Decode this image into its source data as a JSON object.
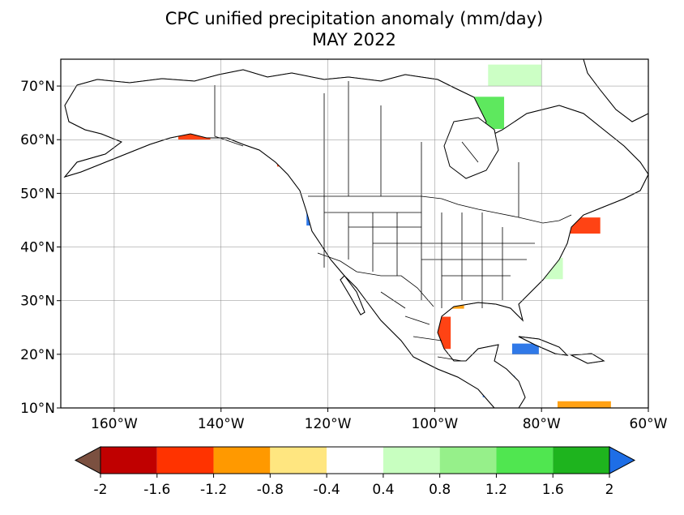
{
  "title": {
    "line1": "CPC unified precipitation anomaly (mm/day)",
    "line2": "MAY 2022"
  },
  "map": {
    "lon_range": [
      -170,
      -60
    ],
    "lat_range": [
      10,
      75
    ],
    "lat_labels": [
      "10°N",
      "20°N",
      "30°N",
      "40°N",
      "50°N",
      "60°N",
      "70°N"
    ],
    "lon_labels": [
      "160°W",
      "140°W",
      "120°W",
      "100°W",
      "80°W",
      "60°W"
    ]
  },
  "colorbar": {
    "tick_labels": [
      "-2",
      "-1.6",
      "-1.2",
      "-0.8",
      "-0.4",
      "0.4",
      "0.8",
      "1.2",
      "1.6",
      "2"
    ],
    "colors": [
      "#c00000",
      "#ff3300",
      "#ff9900",
      "#ffe680",
      "#ffffff",
      "#c8ffc0",
      "#96f08a",
      "#50e650",
      "#1eb41e"
    ],
    "under_color": "#7b5040",
    "over_color": "#1e6ee6"
  },
  "anomaly_colors": {
    "strong_dry": "#c00000",
    "dry": "#ff3300",
    "moderate_dry": "#ff9900",
    "slight_dry": "#ffe680",
    "slight_wet": "#c8ffc0",
    "moderate_wet": "#96f08a",
    "wet": "#50e650",
    "very_wet": "#1eb41e",
    "extreme_wet": "#1e6ee6"
  },
  "anomaly_regions": [
    {
      "lat": 62,
      "lon": -150,
      "w": 14,
      "h": 3,
      "cls": "slight_dry"
    },
    {
      "lat": 61,
      "lon": -145,
      "w": 6,
      "h": 2,
      "cls": "dry"
    },
    {
      "lat": 63,
      "lon": -133,
      "w": 6,
      "h": 3,
      "cls": "wet"
    },
    {
      "lat": 57,
      "lon": -127,
      "w": 5,
      "h": 4,
      "cls": "dry"
    },
    {
      "lat": 56,
      "lon": -120,
      "w": 3,
      "h": 4,
      "cls": "extreme_wet"
    },
    {
      "lat": 52,
      "lon": -112,
      "w": 7,
      "h": 4,
      "cls": "moderate_dry"
    },
    {
      "lat": 50,
      "lon": -103,
      "w": 7,
      "h": 5,
      "cls": "extreme_wet"
    },
    {
      "lat": 47,
      "lon": -98,
      "w": 4,
      "h": 4,
      "cls": "extreme_wet"
    },
    {
      "lat": 47,
      "lon": -123,
      "w": 2,
      "h": 6,
      "cls": "extreme_wet"
    },
    {
      "lat": 42,
      "lon": -97,
      "w": 4,
      "h": 4,
      "cls": "dry"
    },
    {
      "lat": 38,
      "lon": -98,
      "w": 4,
      "h": 4,
      "cls": "extreme_wet"
    },
    {
      "lat": 33,
      "lon": -99,
      "w": 6,
      "h": 6,
      "cls": "dry"
    },
    {
      "lat": 30,
      "lon": -96,
      "w": 3,
      "h": 3,
      "cls": "moderate_dry"
    },
    {
      "lat": 24,
      "lon": -99,
      "w": 4,
      "h": 6,
      "cls": "dry"
    },
    {
      "lat": 14,
      "lon": -88,
      "w": 6,
      "h": 4,
      "cls": "extreme_wet"
    },
    {
      "lat": 21,
      "lon": -83,
      "w": 5,
      "h": 2,
      "cls": "extreme_wet"
    },
    {
      "lat": 44,
      "lon": -72,
      "w": 6,
      "h": 3,
      "cls": "dry"
    },
    {
      "lat": 53,
      "lon": -70,
      "w": 8,
      "h": 3,
      "cls": "moderate_dry"
    },
    {
      "lat": 65,
      "lon": -90,
      "w": 6,
      "h": 6,
      "cls": "wet"
    },
    {
      "lat": 58,
      "lon": -75,
      "w": 8,
      "h": 5,
      "cls": "slight_wet"
    },
    {
      "lat": 72,
      "lon": -85,
      "w": 10,
      "h": 4,
      "cls": "slight_wet"
    },
    {
      "lat": 49,
      "lon": -85,
      "w": 10,
      "h": 3,
      "cls": "wet"
    },
    {
      "lat": 36,
      "lon": -80,
      "w": 8,
      "h": 4,
      "cls": "slight_wet"
    },
    {
      "lat": 10.5,
      "lon": -72,
      "w": 10,
      "h": 1.5,
      "cls": "moderate_dry"
    }
  ]
}
